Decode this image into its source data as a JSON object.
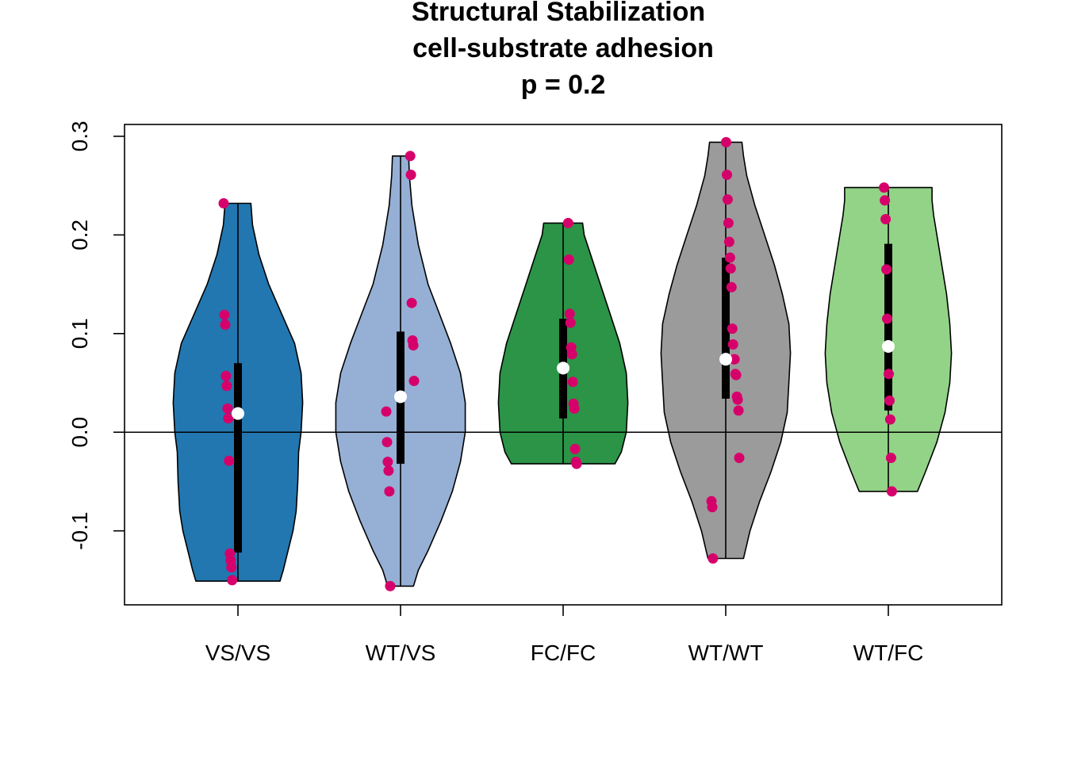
{
  "chart_data": {
    "type": "violin",
    "title_lines": [
      "Structural Stabilization",
      "cell-substrate adhesion",
      "p = 0.2"
    ],
    "xlabel": "",
    "ylabel": "",
    "categories": [
      "VS/VS",
      "WT/VS",
      "FC/FC",
      "WT/WT",
      "WT/FC"
    ],
    "ylim": [
      -0.175,
      0.312
    ],
    "yticks": [
      -0.1,
      0.0,
      0.1,
      0.2,
      0.3
    ],
    "ytick_labels": [
      "-0.1",
      "0.0",
      "0.1",
      "0.2",
      "0.3"
    ],
    "reference_line_y": 0.0,
    "point_color": "#d6006b",
    "median_color": "#ffffff",
    "groups": [
      {
        "label": "VS/VS",
        "fill": "#2277b0",
        "min": -0.151,
        "max": 0.232,
        "q1": -0.122,
        "q3": 0.07,
        "median": 0.019,
        "density": [
          [
            -0.151,
            0.52
          ],
          [
            -0.14,
            0.56
          ],
          [
            -0.12,
            0.62
          ],
          [
            -0.1,
            0.68
          ],
          [
            -0.08,
            0.72
          ],
          [
            -0.05,
            0.74
          ],
          [
            -0.02,
            0.75
          ],
          [
            0.0,
            0.78
          ],
          [
            0.03,
            0.8
          ],
          [
            0.06,
            0.78
          ],
          [
            0.09,
            0.7
          ],
          [
            0.12,
            0.54
          ],
          [
            0.15,
            0.38
          ],
          [
            0.18,
            0.26
          ],
          [
            0.21,
            0.18
          ],
          [
            0.232,
            0.16
          ]
        ],
        "points": [
          0.232,
          0.119,
          0.109,
          0.057,
          0.047,
          0.024,
          0.014,
          -0.029,
          -0.123,
          -0.13,
          -0.137,
          -0.15
        ]
      },
      {
        "label": "WT/VS",
        "fill": "#96afd5",
        "min": -0.156,
        "max": 0.28,
        "q1": -0.032,
        "q3": 0.102,
        "median": 0.036,
        "density": [
          [
            -0.156,
            0.16
          ],
          [
            -0.14,
            0.22
          ],
          [
            -0.12,
            0.34
          ],
          [
            -0.09,
            0.5
          ],
          [
            -0.06,
            0.64
          ],
          [
            -0.03,
            0.74
          ],
          [
            0.0,
            0.8
          ],
          [
            0.03,
            0.8
          ],
          [
            0.06,
            0.74
          ],
          [
            0.09,
            0.62
          ],
          [
            0.12,
            0.48
          ],
          [
            0.15,
            0.34
          ],
          [
            0.19,
            0.22
          ],
          [
            0.23,
            0.14
          ],
          [
            0.26,
            0.11
          ],
          [
            0.28,
            0.1
          ]
        ],
        "points": [
          0.28,
          0.261,
          0.131,
          0.093,
          0.088,
          0.052,
          0.021,
          -0.01,
          -0.03,
          -0.039,
          -0.06,
          -0.156
        ]
      },
      {
        "label": "FC/FC",
        "fill": "#2b9447",
        "min": -0.032,
        "max": 0.212,
        "q1": 0.014,
        "q3": 0.115,
        "median": 0.065,
        "density": [
          [
            -0.032,
            0.64
          ],
          [
            -0.02,
            0.72
          ],
          [
            0.0,
            0.78
          ],
          [
            0.03,
            0.8
          ],
          [
            0.06,
            0.78
          ],
          [
            0.09,
            0.7
          ],
          [
            0.12,
            0.58
          ],
          [
            0.15,
            0.46
          ],
          [
            0.18,
            0.34
          ],
          [
            0.2,
            0.26
          ],
          [
            0.212,
            0.24
          ]
        ],
        "points": [
          0.212,
          0.175,
          0.12,
          0.111,
          0.086,
          0.079,
          0.051,
          0.029,
          0.024,
          -0.017,
          -0.03,
          -0.032
        ]
      },
      {
        "label": "WT/WT",
        "fill": "#9b9b9b",
        "min": -0.128,
        "max": 0.294,
        "q1": 0.034,
        "q3": 0.177,
        "median": 0.074,
        "density": [
          [
            -0.128,
            0.22
          ],
          [
            -0.1,
            0.3
          ],
          [
            -0.07,
            0.42
          ],
          [
            -0.04,
            0.56
          ],
          [
            -0.01,
            0.68
          ],
          [
            0.02,
            0.76
          ],
          [
            0.05,
            0.78
          ],
          [
            0.08,
            0.8
          ],
          [
            0.11,
            0.78
          ],
          [
            0.14,
            0.7
          ],
          [
            0.17,
            0.6
          ],
          [
            0.2,
            0.48
          ],
          [
            0.23,
            0.36
          ],
          [
            0.26,
            0.26
          ],
          [
            0.28,
            0.22
          ],
          [
            0.294,
            0.2
          ]
        ],
        "points": [
          0.294,
          0.261,
          0.236,
          0.212,
          0.193,
          0.177,
          0.166,
          0.147,
          0.105,
          0.089,
          0.074,
          0.074,
          0.059,
          0.058,
          0.036,
          0.033,
          0.022,
          -0.026,
          -0.07,
          -0.076,
          -0.128
        ]
      },
      {
        "label": "WT/FC",
        "fill": "#92d387",
        "min": -0.06,
        "max": 0.248,
        "q1": 0.022,
        "q3": 0.191,
        "median": 0.087,
        "density": [
          [
            -0.06,
            0.36
          ],
          [
            -0.04,
            0.46
          ],
          [
            -0.01,
            0.6
          ],
          [
            0.02,
            0.7
          ],
          [
            0.05,
            0.76
          ],
          [
            0.08,
            0.78
          ],
          [
            0.11,
            0.76
          ],
          [
            0.14,
            0.72
          ],
          [
            0.17,
            0.66
          ],
          [
            0.2,
            0.6
          ],
          [
            0.22,
            0.56
          ],
          [
            0.235,
            0.54
          ],
          [
            0.248,
            0.54
          ]
        ],
        "points": [
          0.248,
          0.235,
          0.216,
          0.165,
          0.115,
          0.087,
          0.059,
          0.032,
          0.013,
          -0.026,
          -0.06
        ]
      }
    ]
  }
}
